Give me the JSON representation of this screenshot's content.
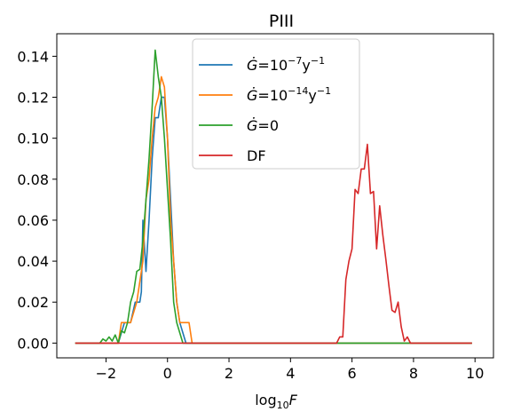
{
  "chart_data": {
    "type": "line",
    "title": "PIII",
    "xlabel_base": "log",
    "xlabel_sub": "10",
    "xlabel_var": "F",
    "ylabel": "",
    "xlim": [
      -3.6,
      10.6
    ],
    "ylim": [
      -0.0072,
      0.151
    ],
    "xticks": [
      -2,
      0,
      2,
      4,
      6,
      8,
      10
    ],
    "xtick_labels": [
      "−2",
      "0",
      "2",
      "4",
      "6",
      "8",
      "10"
    ],
    "yticks": [
      0.0,
      0.02,
      0.04,
      0.06,
      0.08,
      0.1,
      0.12,
      0.14
    ],
    "ytick_labels": [
      "0.00",
      "0.02",
      "0.04",
      "0.06",
      "0.08",
      "0.10",
      "0.12",
      "0.14"
    ],
    "grid": false,
    "legend_position": "top-center",
    "series": [
      {
        "name": "Ġ=10⁻⁷y⁻¹",
        "legend": {
          "lead": "Ġ",
          "mid": "=10",
          "exp1": "−7",
          "unit": "y",
          "exp2": "−1"
        },
        "color": "#1f77b4",
        "x": [
          -3.0,
          -2.0,
          -1.8,
          -1.6,
          -1.4,
          -1.2,
          -1.05,
          -0.9,
          -0.85,
          -0.8,
          -0.7,
          -0.6,
          -0.5,
          -0.4,
          -0.3,
          -0.2,
          -0.1,
          0.0,
          0.1,
          0.2,
          0.3,
          0.4,
          0.5,
          0.6,
          0.7,
          0.8,
          1.0,
          9.9
        ],
        "y": [
          0.0,
          0.0,
          0.0,
          0.0,
          0.01,
          0.01,
          0.02,
          0.02,
          0.025,
          0.06,
          0.035,
          0.06,
          0.09,
          0.11,
          0.11,
          0.12,
          0.12,
          0.1,
          0.07,
          0.04,
          0.02,
          0.01,
          0.005,
          0.0,
          0.0,
          0.0,
          0.0,
          0.0
        ]
      },
      {
        "name": "Ġ=10⁻¹⁴y⁻¹",
        "legend": {
          "lead": "Ġ",
          "mid": "=10",
          "exp1": "−14",
          "unit": "y",
          "exp2": "−1"
        },
        "color": "#ff7f0e",
        "x": [
          -3.0,
          -2.0,
          -1.8,
          -1.6,
          -1.5,
          -1.3,
          -1.2,
          -1.0,
          -0.9,
          -0.8,
          -0.7,
          -0.6,
          -0.5,
          -0.4,
          -0.3,
          -0.2,
          -0.1,
          0.0,
          0.1,
          0.2,
          0.3,
          0.4,
          0.5,
          0.6,
          0.7,
          0.8,
          0.9,
          9.9
        ],
        "y": [
          0.0,
          0.0,
          0.0,
          0.0,
          0.01,
          0.01,
          0.01,
          0.02,
          0.03,
          0.04,
          0.07,
          0.08,
          0.1,
          0.115,
          0.12,
          0.13,
          0.125,
          0.1,
          0.06,
          0.04,
          0.02,
          0.01,
          0.01,
          0.01,
          0.01,
          0.0,
          0.0,
          0.0
        ]
      },
      {
        "name": "Ġ=0",
        "legend": {
          "lead": "Ġ",
          "mid": "=0",
          "exp1": "",
          "unit": "",
          "exp2": ""
        },
        "color": "#2ca02c",
        "x": [
          -3.0,
          -2.2,
          -2.1,
          -2.0,
          -1.9,
          -1.8,
          -1.7,
          -1.6,
          -1.5,
          -1.4,
          -1.3,
          -1.2,
          -1.1,
          -1.0,
          -0.9,
          -0.8,
          -0.7,
          -0.6,
          -0.5,
          -0.4,
          -0.3,
          -0.2,
          -0.1,
          0.0,
          0.1,
          0.2,
          0.3,
          0.4,
          0.5,
          0.6,
          0.7,
          0.8,
          0.9,
          1.0,
          9.9
        ],
        "y": [
          0.0,
          0.0,
          0.002,
          0.001,
          0.003,
          0.001,
          0.004,
          0.0,
          0.006,
          0.005,
          0.01,
          0.02,
          0.025,
          0.035,
          0.036,
          0.05,
          0.07,
          0.09,
          0.115,
          0.143,
          0.13,
          0.12,
          0.1,
          0.075,
          0.05,
          0.02,
          0.01,
          0.005,
          0.0,
          0.0,
          0.0,
          0.0,
          0.0,
          0.0,
          0.0
        ]
      },
      {
        "name": "DF",
        "legend": {
          "lead": "",
          "mid": "DF",
          "exp1": "",
          "unit": "",
          "exp2": ""
        },
        "color": "#d62728",
        "x": [
          -3.0,
          5.4,
          5.5,
          5.6,
          5.7,
          5.8,
          5.9,
          6.0,
          6.1,
          6.2,
          6.3,
          6.4,
          6.5,
          6.6,
          6.7,
          6.8,
          6.9,
          7.0,
          7.1,
          7.2,
          7.3,
          7.4,
          7.5,
          7.6,
          7.7,
          7.8,
          7.9,
          8.0,
          8.1,
          8.2,
          8.3,
          8.4,
          8.5,
          8.6,
          9.9
        ],
        "y": [
          0.0,
          0.0,
          0.0,
          0.003,
          0.003,
          0.031,
          0.04,
          0.046,
          0.075,
          0.073,
          0.085,
          0.085,
          0.097,
          0.073,
          0.074,
          0.046,
          0.067,
          0.053,
          0.041,
          0.028,
          0.016,
          0.015,
          0.02,
          0.008,
          0.001,
          0.003,
          0.0,
          0.0,
          0.0,
          0.0,
          0.0,
          0.0,
          0.0,
          0.0,
          0.0
        ]
      }
    ]
  }
}
